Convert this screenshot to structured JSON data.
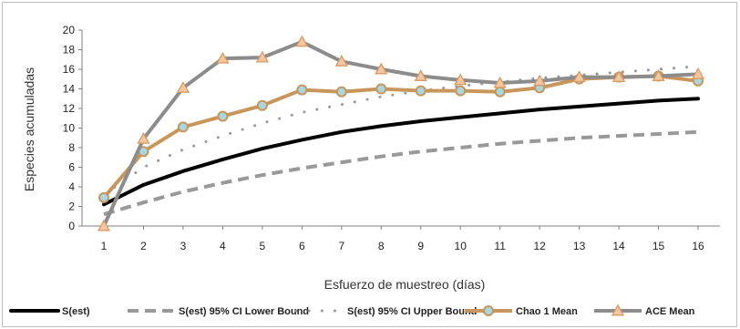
{
  "chart_data": {
    "type": "line",
    "title": "",
    "xlabel": "Esfuerzo de muestreo (días)",
    "ylabel": "Especies acumuladas",
    "x": [
      1,
      2,
      3,
      4,
      5,
      6,
      7,
      8,
      9,
      10,
      11,
      12,
      13,
      14,
      15,
      16
    ],
    "xlim": [
      1,
      16
    ],
    "ylim": [
      0,
      20
    ],
    "yticks": [
      0,
      2,
      4,
      6,
      8,
      10,
      12,
      14,
      16,
      18,
      20
    ],
    "grid": false,
    "legend_position": "bottom",
    "series": [
      {
        "name": "S(est)",
        "color": "#000000",
        "style": "solid-thick",
        "values": [
          2.2,
          4.2,
          5.6,
          6.8,
          7.9,
          8.8,
          9.6,
          10.2,
          10.7,
          11.1,
          11.5,
          11.9,
          12.2,
          12.5,
          12.8,
          13.0
        ]
      },
      {
        "name": "S(est) 95% CI Lower Bound",
        "color": "#999999",
        "style": "dashed",
        "values": [
          1.2,
          2.4,
          3.5,
          4.4,
          5.2,
          5.9,
          6.5,
          7.1,
          7.6,
          8.0,
          8.4,
          8.7,
          9.0,
          9.2,
          9.4,
          9.6
        ]
      },
      {
        "name": "S(est) 95% CI Upper Bound",
        "color": "#999999",
        "style": "dotted",
        "values": [
          3.2,
          6.0,
          7.8,
          9.2,
          10.5,
          11.6,
          12.4,
          13.2,
          13.8,
          14.3,
          14.7,
          15.1,
          15.4,
          15.7,
          16.0,
          16.3
        ]
      },
      {
        "name": "Chao 1 Mean",
        "color": "#c8965a",
        "marker": "circle",
        "values": [
          2.9,
          7.6,
          10.1,
          11.2,
          12.3,
          13.9,
          13.7,
          14.0,
          13.8,
          13.8,
          13.7,
          14.1,
          15.0,
          15.2,
          15.3,
          14.8
        ]
      },
      {
        "name": "ACE Mean",
        "color": "#8c8c8c",
        "marker": "triangle",
        "values": [
          0.0,
          8.9,
          14.1,
          17.1,
          17.2,
          18.8,
          16.8,
          16.0,
          15.3,
          14.9,
          14.6,
          14.8,
          15.2,
          15.2,
          15.3,
          15.5
        ]
      }
    ]
  }
}
